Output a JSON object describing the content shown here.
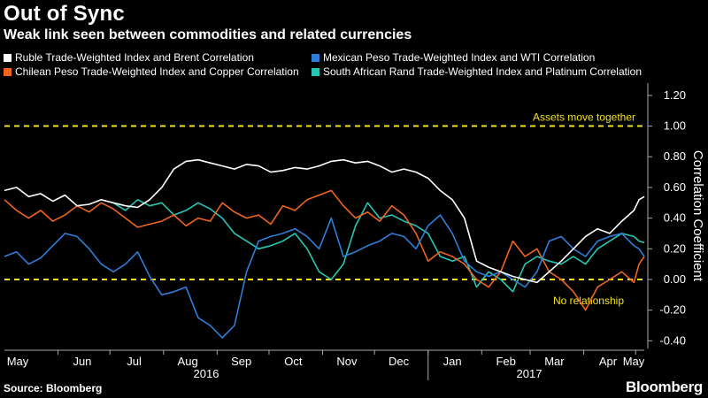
{
  "title": "Out of Sync",
  "subtitle": "Weak link seen between commodities and related currencies",
  "source": "Source: Bloomberg",
  "brand": "Bloomberg",
  "colors": {
    "white": "#ffffff",
    "blue": "#2f7ed8",
    "orange": "#f0641e",
    "teal": "#26c6b4",
    "ref": "#f2e21c",
    "axis": "#aaaaaa"
  },
  "chart_data": {
    "type": "line",
    "ylabel": "Correlation Coefficient",
    "ylim": [
      -0.45,
      1.28
    ],
    "yticks": [
      "-0.40",
      "-0.20",
      "0.00",
      "0.20",
      "0.40",
      "0.60",
      "0.80",
      "1.00",
      "1.20"
    ],
    "months": [
      "May",
      "Jun",
      "Jul",
      "Aug",
      "Sep",
      "Oct",
      "Nov",
      "Dec",
      "Jan",
      "Feb",
      "Mar",
      "Apr",
      "May"
    ],
    "years": [
      "2016",
      "2017"
    ],
    "x_range": [
      "2016-05-01",
      "2017-05-06"
    ],
    "reference_lines": [
      {
        "value": 1.0,
        "label": "Assets move together"
      },
      {
        "value": 0.0,
        "label": "No relationship"
      }
    ],
    "series": [
      {
        "name": "Ruble Trade-Weighted Index and Brent Correlation",
        "color": "#ffffff",
        "points": [
          [
            "2016-05-01",
            0.58
          ],
          [
            "2016-05-08",
            0.6
          ],
          [
            "2016-05-15",
            0.54
          ],
          [
            "2016-05-22",
            0.56
          ],
          [
            "2016-05-29",
            0.51
          ],
          [
            "2016-06-05",
            0.55
          ],
          [
            "2016-06-12",
            0.48
          ],
          [
            "2016-06-19",
            0.49
          ],
          [
            "2016-06-26",
            0.52
          ],
          [
            "2016-07-03",
            0.5
          ],
          [
            "2016-07-10",
            0.48
          ],
          [
            "2016-07-17",
            0.47
          ],
          [
            "2016-07-24",
            0.52
          ],
          [
            "2016-07-31",
            0.6
          ],
          [
            "2016-08-07",
            0.72
          ],
          [
            "2016-08-14",
            0.77
          ],
          [
            "2016-08-21",
            0.78
          ],
          [
            "2016-08-28",
            0.76
          ],
          [
            "2016-09-04",
            0.74
          ],
          [
            "2016-09-11",
            0.72
          ],
          [
            "2016-09-18",
            0.75
          ],
          [
            "2016-09-25",
            0.74
          ],
          [
            "2016-10-02",
            0.7
          ],
          [
            "2016-10-09",
            0.71
          ],
          [
            "2016-10-16",
            0.73
          ],
          [
            "2016-10-23",
            0.72
          ],
          [
            "2016-10-30",
            0.74
          ],
          [
            "2016-11-06",
            0.77
          ],
          [
            "2016-11-13",
            0.78
          ],
          [
            "2016-11-20",
            0.76
          ],
          [
            "2016-11-27",
            0.77
          ],
          [
            "2016-12-04",
            0.74
          ],
          [
            "2016-12-11",
            0.7
          ],
          [
            "2016-12-18",
            0.72
          ],
          [
            "2016-12-25",
            0.7
          ],
          [
            "2017-01-01",
            0.66
          ],
          [
            "2017-01-08",
            0.58
          ],
          [
            "2017-01-15",
            0.52
          ],
          [
            "2017-01-22",
            0.4
          ],
          [
            "2017-01-29",
            0.12
          ],
          [
            "2017-02-05",
            0.08
          ],
          [
            "2017-02-12",
            0.05
          ],
          [
            "2017-02-19",
            0.02
          ],
          [
            "2017-02-26",
            0.0
          ],
          [
            "2017-03-05",
            -0.02
          ],
          [
            "2017-03-12",
            0.05
          ],
          [
            "2017-03-19",
            0.12
          ],
          [
            "2017-03-26",
            0.2
          ],
          [
            "2017-04-02",
            0.28
          ],
          [
            "2017-04-09",
            0.33
          ],
          [
            "2017-04-16",
            0.3
          ],
          [
            "2017-04-23",
            0.38
          ],
          [
            "2017-04-30",
            0.45
          ],
          [
            "2017-05-03",
            0.52
          ],
          [
            "2017-05-06",
            0.54
          ]
        ]
      },
      {
        "name": "Mexican Peso Trade-Weighted Index and WTI Correlation",
        "color": "#2f7ed8",
        "points": [
          [
            "2016-05-01",
            0.15
          ],
          [
            "2016-05-08",
            0.18
          ],
          [
            "2016-05-15",
            0.1
          ],
          [
            "2016-05-22",
            0.14
          ],
          [
            "2016-05-29",
            0.22
          ],
          [
            "2016-06-05",
            0.3
          ],
          [
            "2016-06-12",
            0.28
          ],
          [
            "2016-06-19",
            0.2
          ],
          [
            "2016-06-26",
            0.1
          ],
          [
            "2016-07-03",
            0.05
          ],
          [
            "2016-07-10",
            0.1
          ],
          [
            "2016-07-17",
            0.18
          ],
          [
            "2016-07-24",
            0.02
          ],
          [
            "2016-07-31",
            -0.1
          ],
          [
            "2016-08-07",
            -0.08
          ],
          [
            "2016-08-14",
            -0.05
          ],
          [
            "2016-08-21",
            -0.25
          ],
          [
            "2016-08-28",
            -0.3
          ],
          [
            "2016-09-04",
            -0.38
          ],
          [
            "2016-09-11",
            -0.3
          ],
          [
            "2016-09-18",
            0.05
          ],
          [
            "2016-09-25",
            0.25
          ],
          [
            "2016-10-02",
            0.28
          ],
          [
            "2016-10-09",
            0.3
          ],
          [
            "2016-10-16",
            0.33
          ],
          [
            "2016-10-23",
            0.28
          ],
          [
            "2016-10-30",
            0.2
          ],
          [
            "2016-11-06",
            0.4
          ],
          [
            "2016-11-13",
            0.15
          ],
          [
            "2016-11-20",
            0.18
          ],
          [
            "2016-11-27",
            0.22
          ],
          [
            "2016-12-04",
            0.25
          ],
          [
            "2016-12-11",
            0.3
          ],
          [
            "2016-12-18",
            0.28
          ],
          [
            "2016-12-25",
            0.2
          ],
          [
            "2017-01-01",
            0.35
          ],
          [
            "2017-01-08",
            0.42
          ],
          [
            "2017-01-15",
            0.3
          ],
          [
            "2017-01-22",
            0.12
          ],
          [
            "2017-01-29",
            0.05
          ],
          [
            "2017-02-05",
            0.02
          ],
          [
            "2017-02-12",
            0.05
          ],
          [
            "2017-02-19",
            0.0
          ],
          [
            "2017-02-26",
            -0.05
          ],
          [
            "2017-03-05",
            0.05
          ],
          [
            "2017-03-12",
            0.25
          ],
          [
            "2017-03-19",
            0.28
          ],
          [
            "2017-03-26",
            0.2
          ],
          [
            "2017-04-02",
            0.15
          ],
          [
            "2017-04-09",
            0.25
          ],
          [
            "2017-04-16",
            0.28
          ],
          [
            "2017-04-23",
            0.3
          ],
          [
            "2017-04-30",
            0.22
          ],
          [
            "2017-05-03",
            0.2
          ],
          [
            "2017-05-06",
            0.15
          ]
        ]
      },
      {
        "name": "Chilean Peso Trade-Weighted Index and Copper Correlation",
        "color": "#f0641e",
        "points": [
          [
            "2016-05-01",
            0.52
          ],
          [
            "2016-05-08",
            0.45
          ],
          [
            "2016-05-15",
            0.4
          ],
          [
            "2016-05-22",
            0.45
          ],
          [
            "2016-05-29",
            0.38
          ],
          [
            "2016-06-05",
            0.42
          ],
          [
            "2016-06-12",
            0.48
          ],
          [
            "2016-06-19",
            0.44
          ],
          [
            "2016-06-26",
            0.5
          ],
          [
            "2016-07-03",
            0.46
          ],
          [
            "2016-07-10",
            0.4
          ],
          [
            "2016-07-17",
            0.34
          ],
          [
            "2016-07-24",
            0.36
          ],
          [
            "2016-07-31",
            0.38
          ],
          [
            "2016-08-07",
            0.42
          ],
          [
            "2016-08-14",
            0.35
          ],
          [
            "2016-08-21",
            0.4
          ],
          [
            "2016-08-28",
            0.38
          ],
          [
            "2016-09-04",
            0.5
          ],
          [
            "2016-09-11",
            0.44
          ],
          [
            "2016-09-18",
            0.4
          ],
          [
            "2016-09-25",
            0.42
          ],
          [
            "2016-10-02",
            0.36
          ],
          [
            "2016-10-09",
            0.48
          ],
          [
            "2016-10-16",
            0.45
          ],
          [
            "2016-10-23",
            0.52
          ],
          [
            "2016-10-30",
            0.55
          ],
          [
            "2016-11-06",
            0.58
          ],
          [
            "2016-11-13",
            0.48
          ],
          [
            "2016-11-20",
            0.4
          ],
          [
            "2016-11-27",
            0.44
          ],
          [
            "2016-12-04",
            0.38
          ],
          [
            "2016-12-11",
            0.48
          ],
          [
            "2016-12-18",
            0.42
          ],
          [
            "2016-12-25",
            0.3
          ],
          [
            "2017-01-01",
            0.12
          ],
          [
            "2017-01-08",
            0.18
          ],
          [
            "2017-01-15",
            0.15
          ],
          [
            "2017-01-22",
            0.1
          ],
          [
            "2017-01-29",
            0.0
          ],
          [
            "2017-02-05",
            -0.05
          ],
          [
            "2017-02-12",
            0.05
          ],
          [
            "2017-02-19",
            0.25
          ],
          [
            "2017-02-26",
            0.15
          ],
          [
            "2017-03-05",
            0.2
          ],
          [
            "2017-03-12",
            0.05
          ],
          [
            "2017-03-19",
            0.0
          ],
          [
            "2017-03-26",
            -0.08
          ],
          [
            "2017-04-02",
            -0.2
          ],
          [
            "2017-04-09",
            -0.05
          ],
          [
            "2017-04-16",
            0.0
          ],
          [
            "2017-04-23",
            0.05
          ],
          [
            "2017-04-30",
            -0.02
          ],
          [
            "2017-05-03",
            0.1
          ],
          [
            "2017-05-06",
            0.15
          ]
        ]
      },
      {
        "name": "South African Rand Trade-Weighted Index and Platinum Correlation",
        "color": "#26c6b4",
        "points": [
          [
            "2016-07-03",
            0.5
          ],
          [
            "2016-07-10",
            0.45
          ],
          [
            "2016-07-17",
            0.52
          ],
          [
            "2016-07-24",
            0.48
          ],
          [
            "2016-07-31",
            0.5
          ],
          [
            "2016-08-07",
            0.42
          ],
          [
            "2016-08-14",
            0.45
          ],
          [
            "2016-08-21",
            0.5
          ],
          [
            "2016-08-28",
            0.46
          ],
          [
            "2016-09-04",
            0.4
          ],
          [
            "2016-09-11",
            0.3
          ],
          [
            "2016-09-18",
            0.25
          ],
          [
            "2016-09-25",
            0.2
          ],
          [
            "2016-10-02",
            0.22
          ],
          [
            "2016-10-09",
            0.25
          ],
          [
            "2016-10-16",
            0.3
          ],
          [
            "2016-10-23",
            0.2
          ],
          [
            "2016-10-30",
            0.05
          ],
          [
            "2016-11-06",
            0.0
          ],
          [
            "2016-11-13",
            0.1
          ],
          [
            "2016-11-20",
            0.35
          ],
          [
            "2016-11-27",
            0.5
          ],
          [
            "2016-12-04",
            0.4
          ],
          [
            "2016-12-11",
            0.42
          ],
          [
            "2016-12-18",
            0.38
          ],
          [
            "2016-12-25",
            0.35
          ],
          [
            "2017-01-01",
            0.3
          ],
          [
            "2017-01-08",
            0.15
          ],
          [
            "2017-01-15",
            0.12
          ],
          [
            "2017-01-22",
            0.15
          ],
          [
            "2017-01-29",
            -0.05
          ],
          [
            "2017-02-05",
            0.05
          ],
          [
            "2017-02-12",
            0.0
          ],
          [
            "2017-02-19",
            -0.08
          ],
          [
            "2017-02-26",
            0.1
          ],
          [
            "2017-03-05",
            0.15
          ],
          [
            "2017-03-12",
            0.12
          ],
          [
            "2017-03-19",
            0.1
          ],
          [
            "2017-03-26",
            0.15
          ],
          [
            "2017-04-02",
            0.1
          ],
          [
            "2017-04-09",
            0.2
          ],
          [
            "2017-04-16",
            0.25
          ],
          [
            "2017-04-23",
            0.3
          ],
          [
            "2017-04-30",
            0.28
          ],
          [
            "2017-05-03",
            0.25
          ],
          [
            "2017-05-06",
            0.24
          ]
        ]
      }
    ]
  }
}
